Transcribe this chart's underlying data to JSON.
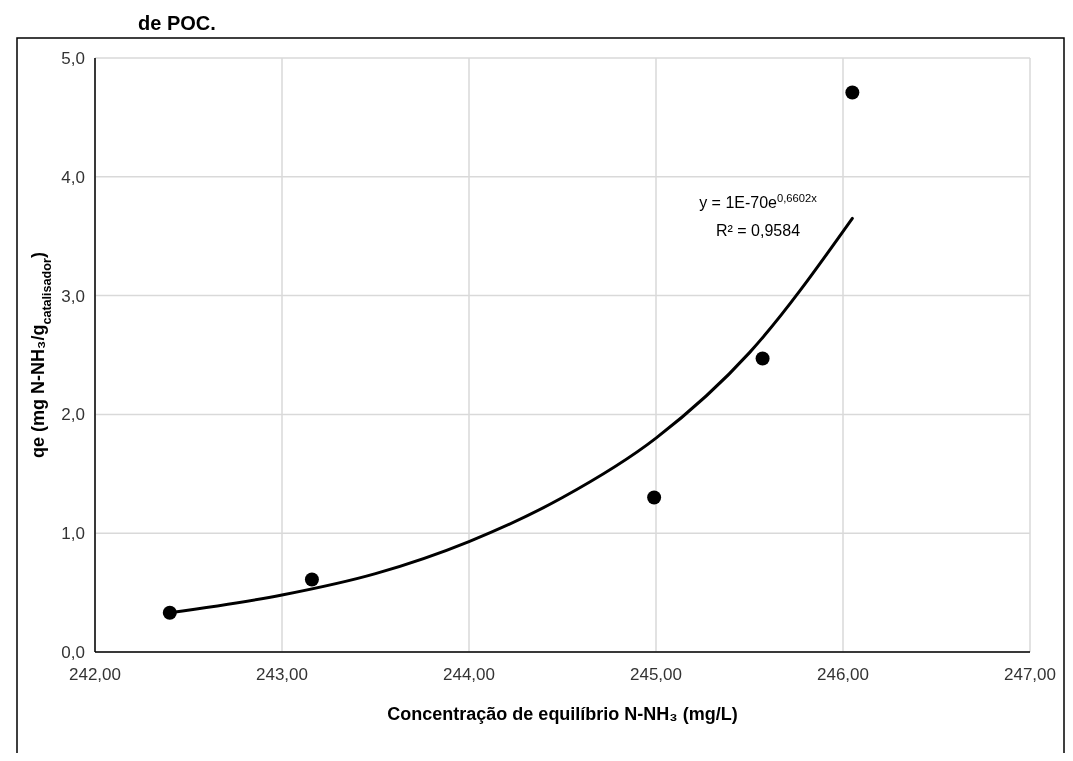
{
  "chart_data": {
    "type": "scatter",
    "xlabel": "Concentração de equilíbrio N-NH₃ (mg/L)",
    "ylabel": "qe (mg N-NH₃/g$_{catalisador}$)",
    "annotations": [
      "de POC.",
      "y = 1E-70e$^{0,6602x}$",
      "R² = 0,9584"
    ],
    "x": [
      242.4,
      243.16,
      244.99,
      245.57,
      246.05
    ],
    "series": [
      {
        "color": "#000000",
        "marker": "circle",
        "values": [
          0.33,
          0.61,
          1.3,
          2.47,
          4.71
        ]
      },
      {
        "type": "line",
        "color": "#000000",
        "line_style": "solid",
        "x": [
          242.4,
          243.0,
          243.5,
          244.0,
          244.5,
          245.0,
          245.5,
          246.05
        ],
        "values": [
          0.33,
          0.48,
          0.66,
          0.93,
          1.3,
          1.8,
          2.52,
          3.65
        ]
      }
    ],
    "xlim": [
      242,
      247
    ],
    "xticks": [
      {
        "value": 242,
        "label": "242,00"
      },
      {
        "value": 243,
        "label": "243,00"
      },
      {
        "value": 244,
        "label": "244,00"
      },
      {
        "value": 245,
        "label": "245,00"
      },
      {
        "value": 246,
        "label": "246,00"
      },
      {
        "value": 247,
        "label": "247,00"
      }
    ],
    "ylim": [
      0,
      5
    ],
    "yticks": [
      {
        "value": 0,
        "label": "0,0"
      },
      {
        "value": 1,
        "label": "1,0"
      },
      {
        "value": 2,
        "label": "2,0"
      },
      {
        "value": 3,
        "label": "3,0"
      },
      {
        "value": 4,
        "label": "4,0"
      },
      {
        "value": 5,
        "label": "5,0"
      }
    ],
    "grid": true
  }
}
